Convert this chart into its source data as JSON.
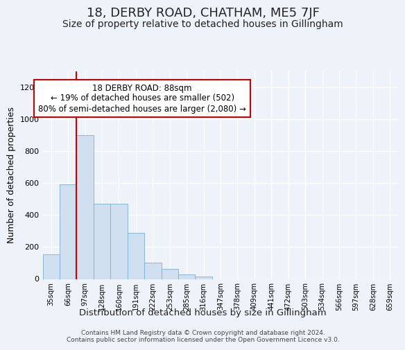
{
  "title": "18, DERBY ROAD, CHATHAM, ME5 7JF",
  "subtitle": "Size of property relative to detached houses in Gillingham",
  "xlabel": "Distribution of detached houses by size in Gillingham",
  "ylabel": "Number of detached properties",
  "categories": [
    "35sqm",
    "66sqm",
    "97sqm",
    "128sqm",
    "160sqm",
    "191sqm",
    "222sqm",
    "253sqm",
    "285sqm",
    "316sqm",
    "347sqm",
    "378sqm",
    "409sqm",
    "441sqm",
    "472sqm",
    "503sqm",
    "534sqm",
    "566sqm",
    "597sqm",
    "628sqm",
    "659sqm"
  ],
  "values": [
    155,
    590,
    900,
    470,
    470,
    290,
    100,
    65,
    30,
    15,
    0,
    0,
    0,
    0,
    0,
    0,
    0,
    0,
    0,
    0,
    0
  ],
  "bar_color": "#cfdff0",
  "bar_edge_color": "#7aafd4",
  "vline_x": 1.5,
  "vline_color": "#cc0000",
  "annotation_text": "18 DERBY ROAD: 88sqm\n← 19% of detached houses are smaller (502)\n80% of semi-detached houses are larger (2,080) →",
  "ann_box_facecolor": "#ffffff",
  "ann_box_edgecolor": "#cc0000",
  "ylim_max": 1300,
  "yticks": [
    0,
    200,
    400,
    600,
    800,
    1000,
    1200
  ],
  "bg_color": "#eef3fa",
  "grid_color": "#ffffff",
  "footer_line1": "Contains HM Land Registry data © Crown copyright and database right 2024.",
  "footer_line2": "Contains public sector information licensed under the Open Government Licence v3.0."
}
